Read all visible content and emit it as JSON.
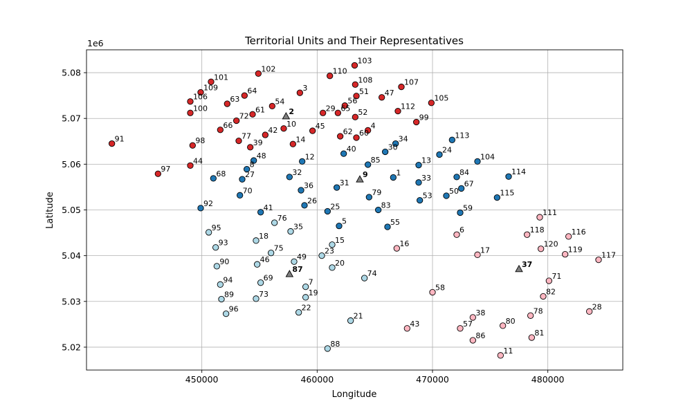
{
  "chart_data": {
    "type": "scatter",
    "title": "Territorial Units and Their Representatives",
    "xlabel": "Longitude",
    "ylabel": "Latitude",
    "y_offset_label": "1e6",
    "xlim": [
      440000,
      486500
    ],
    "ylim": [
      5015000,
      5085000
    ],
    "x_ticks": [
      {
        "value": 450000,
        "label": "450000"
      },
      {
        "value": 460000,
        "label": "460000"
      },
      {
        "value": 470000,
        "label": "470000"
      },
      {
        "value": 480000,
        "label": "480000"
      }
    ],
    "y_ticks": [
      {
        "value": 5020000,
        "label": "5.02"
      },
      {
        "value": 5030000,
        "label": "5.03"
      },
      {
        "value": 5040000,
        "label": "5.04"
      },
      {
        "value": 5050000,
        "label": "5.05"
      },
      {
        "value": 5060000,
        "label": "5.06"
      },
      {
        "value": 5070000,
        "label": "5.07"
      },
      {
        "value": 5080000,
        "label": "5.08"
      }
    ],
    "grid": true,
    "legend": "none",
    "groups": [
      {
        "color": "#d62728",
        "points": [
          [
            "103",
            463250,
            5081600
          ],
          [
            "102",
            454900,
            5079800
          ],
          [
            "110",
            461100,
            5079300
          ],
          [
            "101",
            450800,
            5078000
          ],
          [
            "108",
            463300,
            5077400
          ],
          [
            "107",
            467300,
            5076900
          ],
          [
            "109",
            449900,
            5075700
          ],
          [
            "64",
            453700,
            5075000
          ],
          [
            "3",
            458500,
            5075600
          ],
          [
            "51",
            463400,
            5074900
          ],
          [
            "47",
            465600,
            5074600
          ],
          [
            "106",
            449000,
            5073700
          ],
          [
            "63",
            452200,
            5073200
          ],
          [
            "54",
            456100,
            5072700
          ],
          [
            "56",
            462400,
            5072800
          ],
          [
            "105",
            469900,
            5073400
          ],
          [
            "100",
            449000,
            5071200
          ],
          [
            "61",
            454400,
            5070900
          ],
          [
            "29",
            460500,
            5071200
          ],
          [
            "65",
            461800,
            5071200
          ],
          [
            "52",
            463300,
            5070300
          ],
          [
            "112",
            467000,
            5071600
          ],
          [
            "72",
            453000,
            5069500
          ],
          [
            "99",
            468600,
            5069200
          ],
          [
            "10",
            457100,
            5067800
          ],
          [
            "45",
            459600,
            5067300
          ],
          [
            "66",
            451600,
            5067500
          ],
          [
            "42",
            455500,
            5066400
          ],
          [
            "62",
            462000,
            5066100
          ],
          [
            "60",
            463400,
            5065800
          ],
          [
            "4",
            464400,
            5067400
          ],
          [
            "91",
            442200,
            5064500
          ],
          [
            "98",
            449200,
            5064100
          ],
          [
            "77",
            453200,
            5065100
          ],
          [
            "39",
            454200,
            5063700
          ],
          [
            "14",
            457900,
            5064400
          ],
          [
            "44",
            449000,
            5059700
          ],
          [
            "97",
            446200,
            5057900
          ]
        ]
      },
      {
        "color": "#1f77b4",
        "points": [
          [
            "113",
            471700,
            5065300
          ],
          [
            "34",
            466800,
            5064500
          ],
          [
            "30",
            465900,
            5062700
          ],
          [
            "24",
            470600,
            5062100
          ],
          [
            "40",
            462300,
            5062300
          ],
          [
            "104",
            473900,
            5060600
          ],
          [
            "12",
            458700,
            5060600
          ],
          [
            "48",
            454500,
            5060800
          ],
          [
            "85",
            464400,
            5059900
          ],
          [
            "13",
            468800,
            5059800
          ],
          [
            "8",
            453900,
            5058900
          ],
          [
            "27",
            453500,
            5056700
          ],
          [
            "32",
            457600,
            5057200
          ],
          [
            "68",
            451000,
            5056900
          ],
          [
            "84",
            472100,
            5057200
          ],
          [
            "1",
            466600,
            5057100
          ],
          [
            "114",
            476600,
            5057300
          ],
          [
            "33",
            468800,
            5056000
          ],
          [
            "31",
            461700,
            5054900
          ],
          [
            "67",
            472500,
            5054700
          ],
          [
            "36",
            458600,
            5054300
          ],
          [
            "70",
            453300,
            5053200
          ],
          [
            "79",
            464500,
            5052800
          ],
          [
            "50",
            471200,
            5053100
          ],
          [
            "115",
            475600,
            5052700
          ],
          [
            "53",
            468900,
            5052100
          ],
          [
            "26",
            458900,
            5051000
          ],
          [
            "92",
            449900,
            5050400
          ],
          [
            "83",
            465300,
            5050000
          ],
          [
            "25",
            460900,
            5049700
          ],
          [
            "41",
            455100,
            5049500
          ],
          [
            "59",
            472400,
            5049400
          ],
          [
            "5",
            461900,
            5046500
          ],
          [
            "55",
            466100,
            5046300
          ]
        ]
      },
      {
        "color": "#add8e6",
        "points": [
          [
            "76",
            456300,
            5047200
          ],
          [
            "95",
            450600,
            5045100
          ],
          [
            "35",
            457700,
            5045300
          ],
          [
            "18",
            454700,
            5043300
          ],
          [
            "15",
            461300,
            5042400
          ],
          [
            "93",
            451200,
            5041800
          ],
          [
            "75",
            456000,
            5040600
          ],
          [
            "23",
            460400,
            5040000
          ],
          [
            "46",
            454800,
            5038100
          ],
          [
            "49",
            458000,
            5038700
          ],
          [
            "90",
            451300,
            5037700
          ],
          [
            "20",
            461300,
            5037400
          ],
          [
            "74",
            464100,
            5035100
          ],
          [
            "94",
            451600,
            5033700
          ],
          [
            "69",
            455100,
            5034100
          ],
          [
            "7",
            459000,
            5033200
          ],
          [
            "89",
            451700,
            5030500
          ],
          [
            "73",
            454700,
            5030600
          ],
          [
            "19",
            459000,
            5030900
          ],
          [
            "96",
            452100,
            5027300
          ],
          [
            "22",
            458400,
            5027600
          ],
          [
            "21",
            462900,
            5025800
          ],
          [
            "88",
            460900,
            5019700
          ]
        ]
      },
      {
        "color": "#ffb6c1",
        "points": [
          [
            "111",
            479300,
            5048400
          ],
          [
            "6",
            472100,
            5044600
          ],
          [
            "118",
            478200,
            5044600
          ],
          [
            "116",
            481800,
            5044200
          ],
          [
            "16",
            466900,
            5041600
          ],
          [
            "120",
            479400,
            5041500
          ],
          [
            "119",
            481500,
            5040300
          ],
          [
            "117",
            484400,
            5039100
          ],
          [
            "17",
            473900,
            5040200
          ],
          [
            "71",
            480100,
            5034500
          ],
          [
            "58",
            470000,
            5032000
          ],
          [
            "82",
            479600,
            5031100
          ],
          [
            "28",
            483600,
            5027800
          ],
          [
            "38",
            473500,
            5026500
          ],
          [
            "78",
            478500,
            5026900
          ],
          [
            "80",
            476100,
            5024700
          ],
          [
            "57",
            472400,
            5024100
          ],
          [
            "43",
            467800,
            5024100
          ],
          [
            "81",
            478600,
            5022100
          ],
          [
            "86",
            473500,
            5021500
          ],
          [
            "11",
            475900,
            5018200
          ]
        ]
      }
    ],
    "representatives": [
      {
        "label": "2",
        "x": 457300,
        "y": 5070500
      },
      {
        "label": "9",
        "x": 463700,
        "y": 5056700
      },
      {
        "label": "87",
        "x": 457600,
        "y": 5036000
      },
      {
        "label": "37",
        "x": 477500,
        "y": 5037100
      }
    ]
  }
}
